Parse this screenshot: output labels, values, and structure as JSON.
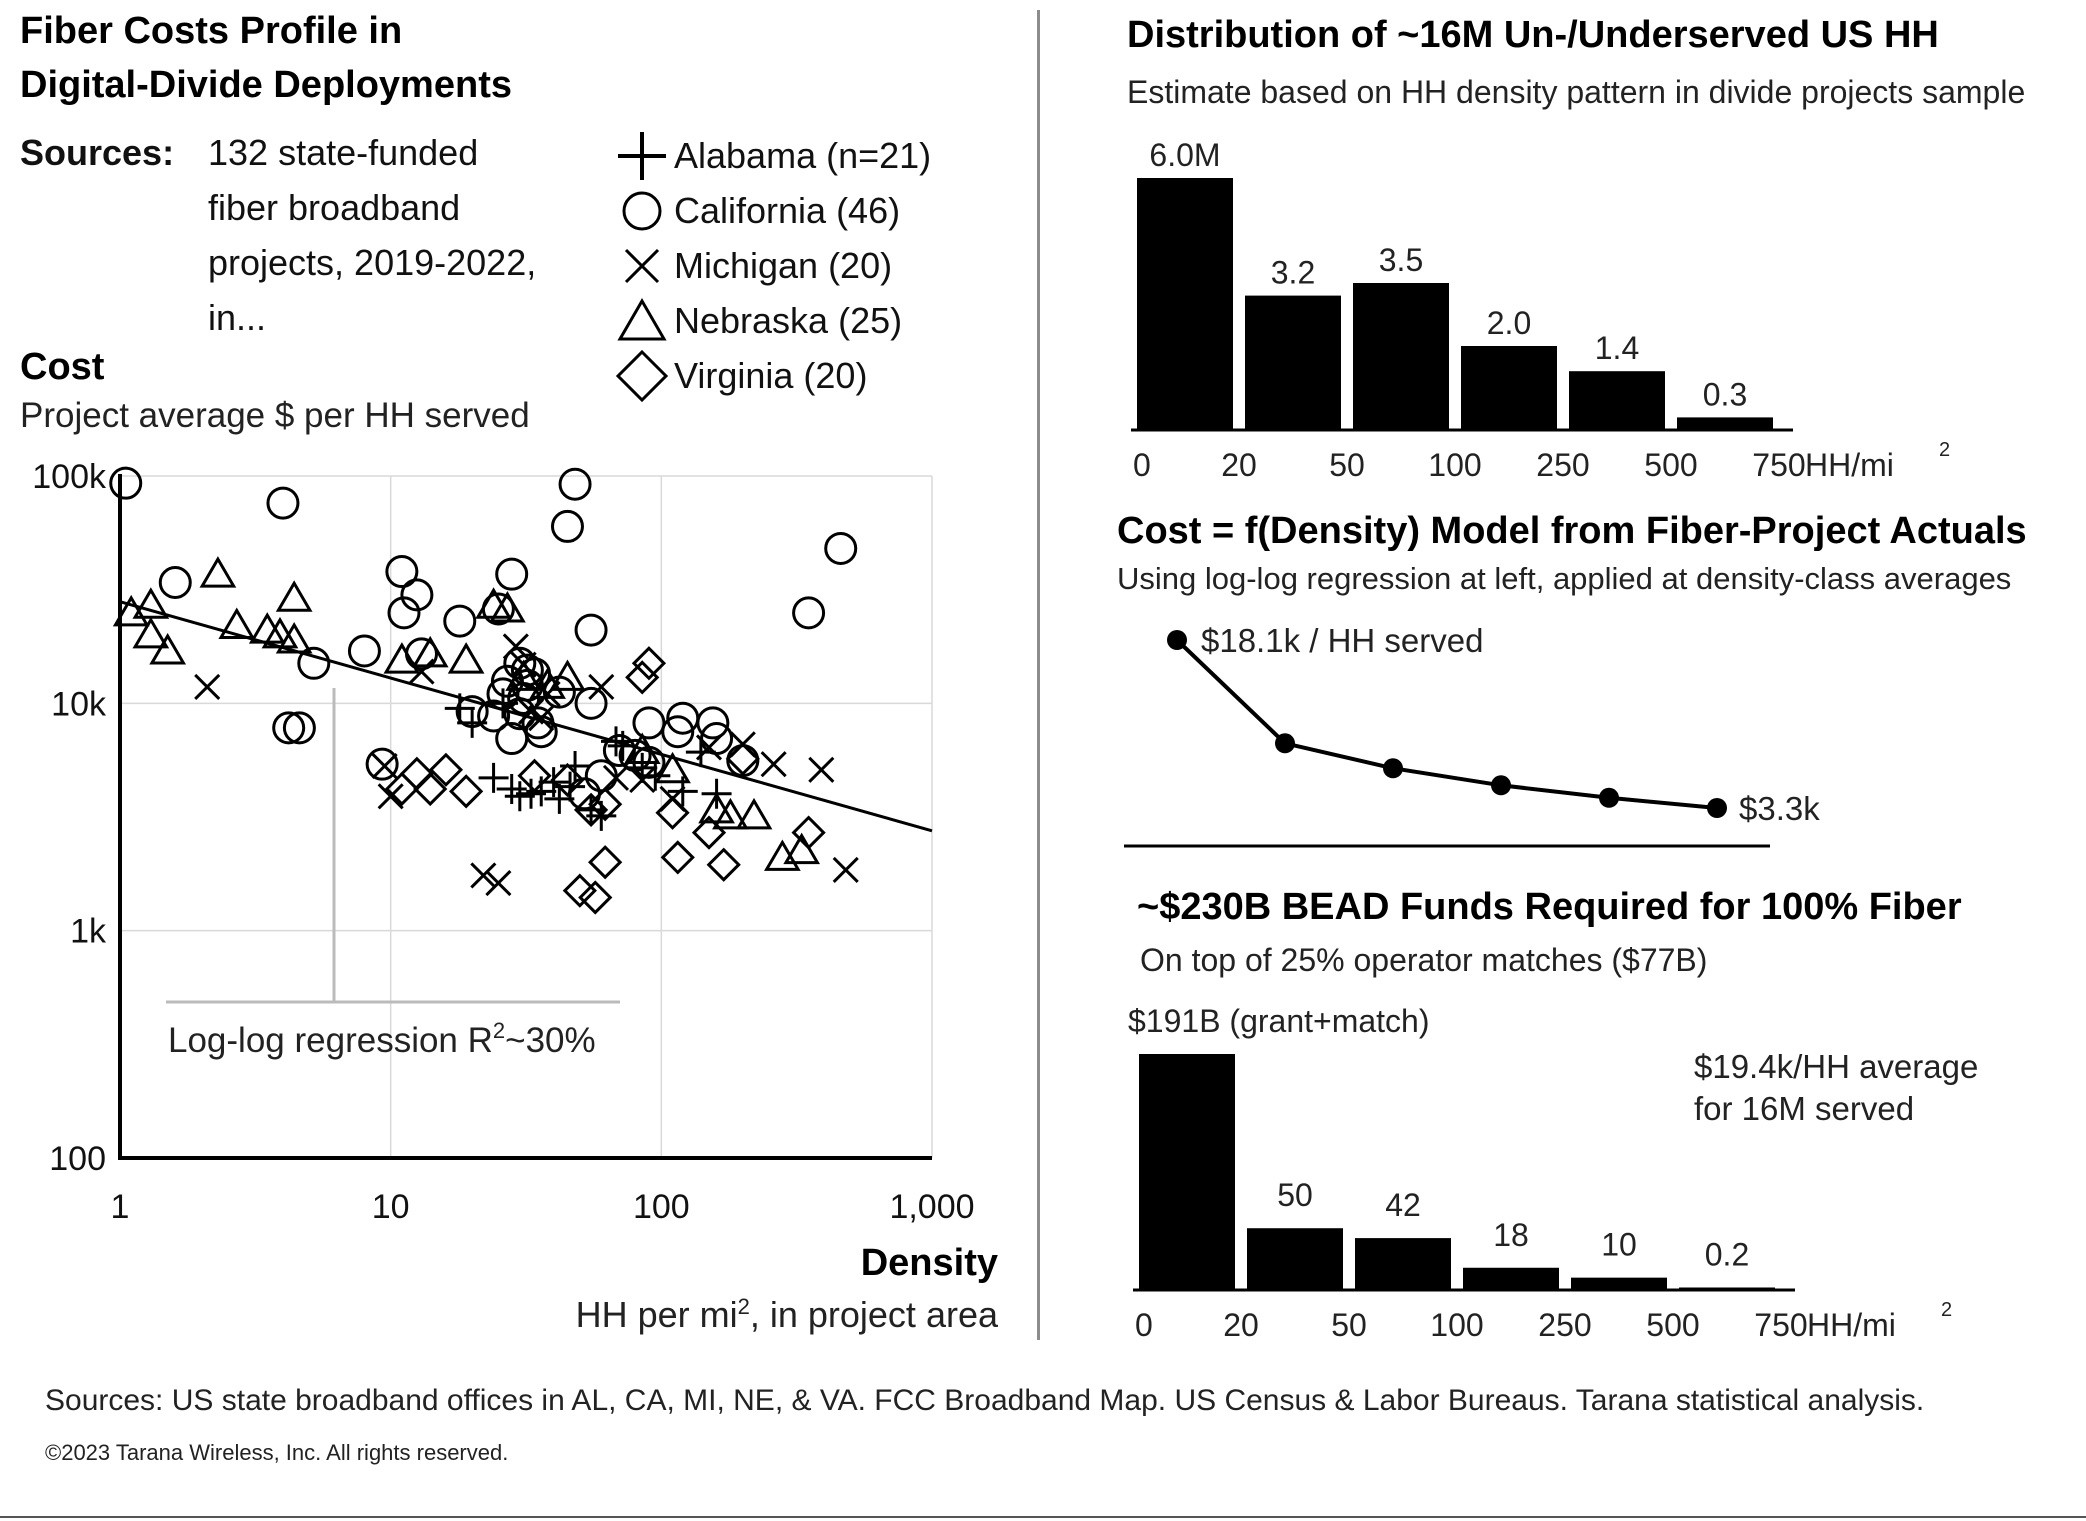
{
  "left": {
    "title_line1": "Fiber Costs Profile in",
    "title_line2": "Digital-Divide Deployments",
    "sources_label": "Sources:",
    "sources_text": [
      "132 state-funded",
      "fiber broadband",
      "projects, 2019-2022,",
      "in..."
    ],
    "legend": [
      {
        "marker": "plus",
        "label": "Alabama (n=21)"
      },
      {
        "marker": "circle",
        "label": "California (46)"
      },
      {
        "marker": "x",
        "label": "Michigan (20)"
      },
      {
        "marker": "triangle",
        "label": "Nebraska (25)"
      },
      {
        "marker": "diamond",
        "label": "Virginia (20)"
      }
    ],
    "cost_title": "Cost",
    "cost_subtitle": "Project average $ per HH served",
    "density_title": "Density",
    "density_subtitle_a": "HH per mi",
    "density_subtitle_sup": "2",
    "density_subtitle_b": ", in project area",
    "regression_note_a": "Log-log regression R",
    "regression_note_sup": "2",
    "regression_note_b": "~30%"
  },
  "right": {
    "dist_title": "Distribution of ~16M Un-/Underserved US HH",
    "dist_subtitle": "Estimate based on HH density pattern in divide projects sample",
    "model_title": "Cost = f(Density) Model from Fiber-Project Actuals",
    "model_subtitle": "Using log-log regression at left, applied at density-class averages",
    "bead_title": "~$230B BEAD Funds Required for 100% Fiber",
    "bead_subtitle": "On top of 25% operator matches ($77B)",
    "bead_note_line1": "$19.4k/HH average",
    "bead_note_line2": "for 16M served",
    "unit_a": "HH/mi",
    "unit_sup": "2"
  },
  "footer": {
    "sources": "Sources:  US state broadband offices in AL, CA, MI, NE, & VA.  FCC Broadband Map.  US Census & Labor Bureaus.  Tarana statistical analysis.",
    "copyright": "©2023 Tarana Wireless, Inc.  All rights reserved."
  },
  "chart_data": [
    {
      "type": "scatter",
      "x_scale": "log",
      "y_scale": "log",
      "xlim": [
        1,
        1000
      ],
      "ylim": [
        100,
        100000
      ],
      "x_ticks": [
        "1",
        "10",
        "100",
        "1,000"
      ],
      "y_ticks": [
        "100k",
        "10k",
        "1k",
        "100"
      ],
      "grid": true,
      "regression": {
        "x": [
          1,
          1000
        ],
        "y": [
          28000,
          2750
        ]
      },
      "series": [
        {
          "name": "Alabama (n=21)",
          "marker": "plus",
          "points": [
            [
              18,
              9500
            ],
            [
              20,
              8200
            ],
            [
              24,
              4700
            ],
            [
              28,
              4200
            ],
            [
              30,
              3900
            ],
            [
              33,
              4000
            ],
            [
              36,
              4100
            ],
            [
              40,
              4500
            ],
            [
              42,
              3800
            ],
            [
              46,
              4300
            ],
            [
              48,
              5300
            ],
            [
              55,
              3400
            ],
            [
              60,
              3200
            ],
            [
              68,
              6800
            ],
            [
              72,
              6500
            ],
            [
              85,
              5200
            ],
            [
              95,
              4800
            ],
            [
              120,
              4100
            ],
            [
              140,
              6100
            ],
            [
              160,
              4000
            ],
            [
              26,
              10000
            ]
          ]
        },
        {
          "name": "California (46)",
          "marker": "circle",
          "points": [
            [
              1.05,
              93000
            ],
            [
              1.6,
              34000
            ],
            [
              4,
              76000
            ],
            [
              4.2,
              7800
            ],
            [
              4.6,
              7800
            ],
            [
              5.2,
              15000
            ],
            [
              8,
              17000
            ],
            [
              9.3,
              5400
            ],
            [
              11,
              38000
            ],
            [
              11.2,
              25000
            ],
            [
              12.5,
              30000
            ],
            [
              13,
              16500
            ],
            [
              18,
              23000
            ],
            [
              25,
              26000
            ],
            [
              27,
              12500
            ],
            [
              28,
              37000
            ],
            [
              30,
              15000
            ],
            [
              31,
              10500
            ],
            [
              32,
              12000
            ],
            [
              30,
              9000
            ],
            [
              28,
              7000
            ],
            [
              32,
              14000
            ],
            [
              36,
              7500
            ],
            [
              45,
              60000
            ],
            [
              48,
              92000
            ],
            [
              55,
              10000
            ],
            [
              55,
              21000
            ],
            [
              90,
              5500
            ],
            [
              90,
              8200
            ],
            [
              115,
              7500
            ],
            [
              120,
              8600
            ],
            [
              155,
              8200
            ],
            [
              160,
              7000
            ],
            [
              200,
              5600
            ],
            [
              350,
              25000
            ],
            [
              460,
              48000
            ],
            [
              52,
              4000
            ],
            [
              34,
              13500
            ],
            [
              26,
              11000
            ],
            [
              60,
              4800
            ],
            [
              70,
              6200
            ],
            [
              24,
              8800
            ],
            [
              20,
              9200
            ],
            [
              42,
              11200
            ],
            [
              35,
              8200
            ],
            [
              80,
              5900
            ]
          ]
        },
        {
          "name": "Michigan (20)",
          "marker": "x",
          "points": [
            [
              2.1,
              11800
            ],
            [
              9.5,
              5300
            ],
            [
              10,
              3900
            ],
            [
              13,
              13800
            ],
            [
              22,
              1750
            ],
            [
              25,
              1620
            ],
            [
              29,
              17800
            ],
            [
              31,
              14800
            ],
            [
              36,
              8600
            ],
            [
              38,
              11000
            ],
            [
              60,
              11800
            ],
            [
              68,
              4700
            ],
            [
              85,
              4600
            ],
            [
              110,
              3800
            ],
            [
              150,
              6400
            ],
            [
              200,
              6600
            ],
            [
              260,
              5400
            ],
            [
              390,
              5100
            ],
            [
              480,
              1850
            ],
            [
              33,
              9200
            ]
          ]
        },
        {
          "name": "Nebraska (25)",
          "marker": "triangle",
          "points": [
            [
              1.1,
              25000
            ],
            [
              1.3,
              27000
            ],
            [
              1.3,
              20000
            ],
            [
              1.5,
              17000
            ],
            [
              2.3,
              37000
            ],
            [
              2.7,
              22000
            ],
            [
              3.5,
              21000
            ],
            [
              3.9,
              20000
            ],
            [
              4.4,
              29000
            ],
            [
              4.4,
              19000
            ],
            [
              11,
              15500
            ],
            [
              14,
              16500
            ],
            [
              19,
              15500
            ],
            [
              24,
              27000
            ],
            [
              27,
              26000
            ],
            [
              38,
              12000
            ],
            [
              45,
              13000
            ],
            [
              85,
              6200
            ],
            [
              110,
              5100
            ],
            [
              160,
              3400
            ],
            [
              180,
              3200
            ],
            [
              220,
              3200
            ],
            [
              280,
              2100
            ],
            [
              330,
              2250
            ],
            [
              31,
              13000
            ]
          ]
        },
        {
          "name": "Virginia (20)",
          "marker": "diamond",
          "points": [
            [
              11,
              4200
            ],
            [
              12.5,
              4900
            ],
            [
              14,
              4200
            ],
            [
              16,
              5100
            ],
            [
              19,
              4100
            ],
            [
              34,
              4800
            ],
            [
              45,
              4600
            ],
            [
              50,
              1500
            ],
            [
              55,
              3400
            ],
            [
              57,
              1400
            ],
            [
              62,
              2000
            ],
            [
              62,
              3600
            ],
            [
              85,
              13000
            ],
            [
              90,
              15000
            ],
            [
              110,
              3300
            ],
            [
              115,
              2100
            ],
            [
              150,
              2700
            ],
            [
              170,
              1950
            ],
            [
              200,
              5700
            ],
            [
              350,
              2700
            ]
          ]
        }
      ]
    },
    {
      "type": "bar",
      "title": "Distribution of ~16M Un-/Underserved US HH",
      "edges": [
        "0",
        "20",
        "50",
        "100",
        "250",
        "500",
        "750"
      ],
      "unit": "HH/mi2",
      "values": [
        6.0,
        3.2,
        3.5,
        2.0,
        1.4,
        0.3
      ],
      "labels": [
        "6.0M",
        "3.2",
        "3.5",
        "2.0",
        "1.4",
        "0.3"
      ]
    },
    {
      "type": "line",
      "title": "Cost = f(Density) Model from Fiber-Project Actuals",
      "values": [
        18.1,
        9.0,
        6.8,
        5.3,
        4.2,
        3.3
      ],
      "labels": [
        "$18.1k / HH served",
        "",
        "",
        "",
        "",
        "$3.3k"
      ]
    },
    {
      "type": "bar",
      "title": "~$230B BEAD Funds Required for 100% Fiber",
      "edges": [
        "0",
        "20",
        "50",
        "100",
        "250",
        "500",
        "750"
      ],
      "unit": "HH/mi2",
      "values": [
        191,
        50,
        42,
        18,
        10,
        0.2
      ],
      "labels": [
        "$191B (grant+match)",
        "50",
        "42",
        "18",
        "10",
        "0.2"
      ]
    }
  ]
}
